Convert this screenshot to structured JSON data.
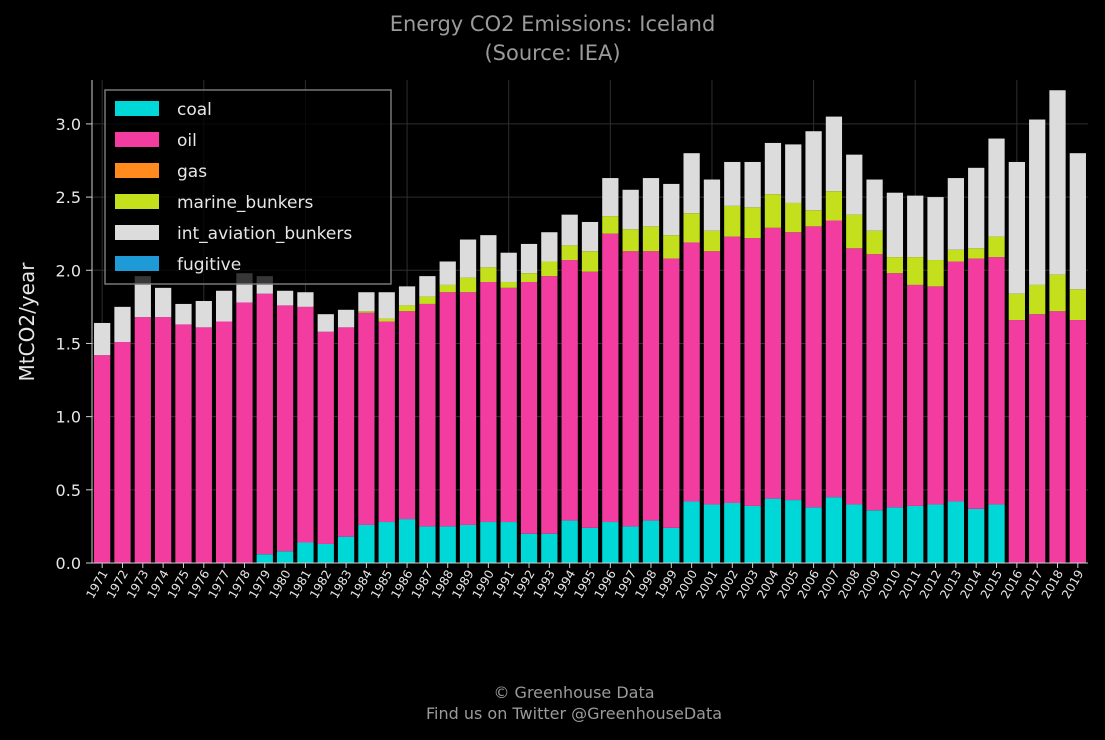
{
  "chart_data": {
    "type": "bar",
    "stacked": true,
    "title": "Energy CO2 Emissions: Iceland",
    "subtitle": "(Source: IEA)",
    "ylabel": "MtCO2/year",
    "xlabel": "",
    "ylim": [
      0,
      3.3
    ],
    "yticks": [
      "0.0",
      "0.5",
      "1.0",
      "1.5",
      "2.0",
      "2.5",
      "3.0"
    ],
    "grid": true,
    "legend_position": "top-left",
    "categories": [
      "1971",
      "1972",
      "1973",
      "1974",
      "1975",
      "1976",
      "1977",
      "1978",
      "1979",
      "1980",
      "1981",
      "1982",
      "1983",
      "1984",
      "1985",
      "1986",
      "1987",
      "1988",
      "1989",
      "1990",
      "1991",
      "1992",
      "1993",
      "1994",
      "1995",
      "1996",
      "1997",
      "1998",
      "1999",
      "2000",
      "2001",
      "2002",
      "2003",
      "2004",
      "2005",
      "2006",
      "2007",
      "2008",
      "2009",
      "2010",
      "2011",
      "2012",
      "2013",
      "2014",
      "2015",
      "2016",
      "2017",
      "2018",
      "2019"
    ],
    "series": [
      {
        "name": "coal",
        "color": "#00d7d7",
        "values": [
          0,
          0,
          0,
          0,
          0,
          0,
          0,
          0,
          0.06,
          0.08,
          0.14,
          0.13,
          0.18,
          0.26,
          0.28,
          0.3,
          0.25,
          0.25,
          0.26,
          0.28,
          0.28,
          0.2,
          0.2,
          0.29,
          0.24,
          0.28,
          0.25,
          0.29,
          0.24,
          0.42,
          0.4,
          0.41,
          0.39,
          0.44,
          0.43,
          0.38,
          0.45,
          0.4,
          0.36,
          0.38,
          0.39,
          0.4,
          0.42,
          0.37,
          0.4,
          0,
          0,
          0,
          0
        ]
      },
      {
        "name": "oil",
        "color": "#f23ca0",
        "values": [
          1.42,
          1.51,
          1.68,
          1.68,
          1.63,
          1.61,
          1.65,
          1.78,
          1.78,
          1.68,
          1.61,
          1.45,
          1.43,
          1.45,
          1.37,
          1.42,
          1.52,
          1.6,
          1.59,
          1.64,
          1.6,
          1.72,
          1.76,
          1.78,
          1.75,
          1.97,
          1.88,
          1.84,
          1.84,
          1.77,
          1.73,
          1.82,
          1.83,
          1.85,
          1.83,
          1.92,
          1.89,
          1.75,
          1.75,
          1.6,
          1.51,
          1.49,
          1.64,
          1.71,
          1.69,
          1.66,
          1.7,
          1.72,
          1.66
        ]
      },
      {
        "name": "gas",
        "color": "#ff8a1e",
        "values": [
          0,
          0,
          0,
          0,
          0,
          0,
          0,
          0,
          0,
          0,
          0,
          0,
          0,
          0,
          0,
          0,
          0,
          0,
          0,
          0,
          0,
          0,
          0,
          0,
          0,
          0,
          0,
          0,
          0,
          0,
          0,
          0,
          0,
          0,
          0,
          0,
          0,
          0,
          0,
          0,
          0,
          0,
          0,
          0,
          0,
          0,
          0,
          0,
          0
        ]
      },
      {
        "name": "marine_bunkers",
        "color": "#c4df1c",
        "values": [
          0,
          0,
          0,
          0,
          0,
          0,
          0,
          0,
          0,
          0,
          0,
          0,
          0,
          0.01,
          0.02,
          0.04,
          0.05,
          0.05,
          0.1,
          0.1,
          0.04,
          0.06,
          0.1,
          0.1,
          0.14,
          0.12,
          0.15,
          0.17,
          0.16,
          0.2,
          0.14,
          0.21,
          0.21,
          0.23,
          0.2,
          0.11,
          0.2,
          0.23,
          0.16,
          0.11,
          0.19,
          0.18,
          0.08,
          0.07,
          0.14,
          0.18,
          0.2,
          0.25,
          0.21
        ]
      },
      {
        "name": "int_aviation_bunkers",
        "color": "#dcdcdc",
        "values": [
          0.22,
          0.24,
          0.28,
          0.2,
          0.14,
          0.18,
          0.21,
          0.2,
          0.12,
          0.1,
          0.1,
          0.12,
          0.12,
          0.13,
          0.18,
          0.13,
          0.14,
          0.16,
          0.26,
          0.22,
          0.2,
          0.2,
          0.2,
          0.21,
          0.2,
          0.26,
          0.27,
          0.33,
          0.35,
          0.41,
          0.35,
          0.3,
          0.31,
          0.35,
          0.4,
          0.54,
          0.51,
          0.41,
          0.35,
          0.44,
          0.42,
          0.43,
          0.49,
          0.55,
          0.67,
          0.9,
          1.13,
          1.26,
          0.93
        ]
      },
      {
        "name": "fugitive",
        "color": "#1e9ad6",
        "values": [
          0,
          0,
          0,
          0,
          0,
          0,
          0,
          0,
          0,
          0,
          0,
          0,
          0,
          0,
          0,
          0,
          0,
          0,
          0,
          0,
          0,
          0,
          0,
          0,
          0,
          0,
          0,
          0,
          0,
          0,
          0,
          0,
          0,
          0,
          0,
          0,
          0,
          0,
          0,
          0,
          0,
          0,
          0,
          0,
          0,
          0,
          0,
          0,
          0
        ]
      }
    ]
  },
  "footer": {
    "line1": "© Greenhouse Data",
    "line2": "Find us on Twitter @GreenhouseData"
  }
}
